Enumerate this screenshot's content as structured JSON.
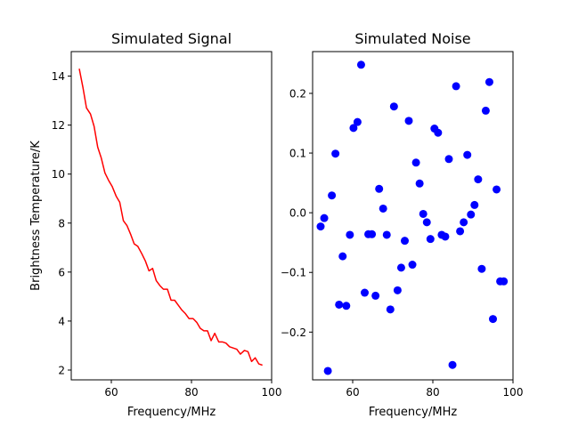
{
  "chart_data": [
    {
      "type": "line",
      "title": "Simulated Signal",
      "xlabel": "Frequency/MHz",
      "ylabel": "Brightness Temperature/K",
      "xlim": [
        50,
        100
      ],
      "ylim": [
        1.6,
        15.0
      ],
      "xticks": [
        60,
        80,
        100
      ],
      "xtick_labels": [
        "60",
        "80",
        "100"
      ],
      "yticks": [
        2,
        4,
        6,
        8,
        10,
        12,
        14
      ],
      "ytick_labels": [
        "2",
        "4",
        "6",
        "8",
        "10",
        "12",
        "14"
      ],
      "grid": false,
      "legend": "none",
      "series": [
        {
          "color": "#ff0000",
          "x": [
            52.0,
            52.9,
            53.8,
            54.8,
            55.7,
            56.6,
            57.5,
            58.4,
            59.3,
            60.2,
            61.2,
            62.1,
            63.0,
            63.9,
            64.8,
            65.7,
            66.6,
            67.6,
            68.5,
            69.4,
            70.3,
            71.2,
            72.1,
            73.0,
            74.0,
            74.9,
            75.8,
            76.7,
            77.6,
            78.5,
            79.4,
            80.4,
            81.3,
            82.2,
            83.1,
            84.0,
            84.9,
            85.8,
            86.8,
            87.7,
            88.6,
            89.5,
            90.4,
            91.3,
            92.2,
            93.2,
            94.1,
            95.0,
            95.9,
            96.8,
            97.7
          ],
          "y": [
            14.3,
            13.55,
            12.7,
            12.45,
            11.95,
            11.1,
            10.65,
            10.05,
            9.75,
            9.5,
            9.1,
            8.85,
            8.1,
            7.9,
            7.55,
            7.15,
            7.05,
            6.75,
            6.45,
            6.05,
            6.15,
            5.65,
            5.45,
            5.3,
            5.3,
            4.85,
            4.85,
            4.65,
            4.45,
            4.3,
            4.1,
            4.1,
            3.95,
            3.7,
            3.6,
            3.6,
            3.2,
            3.5,
            3.15,
            3.15,
            3.1,
            2.95,
            2.9,
            2.85,
            2.65,
            2.8,
            2.75,
            2.35,
            2.5,
            2.25,
            2.2
          ]
        }
      ]
    },
    {
      "type": "scatter",
      "title": "Simulated Noise",
      "xlabel": "Frequency/MHz",
      "ylabel": "",
      "xlim": [
        50,
        100
      ],
      "ylim": [
        -0.28,
        0.27
      ],
      "xticks": [
        60,
        80,
        100
      ],
      "xtick_labels": [
        "60",
        "80",
        "100"
      ],
      "yticks": [
        -0.2,
        -0.1,
        0.0,
        0.1,
        0.2
      ],
      "ytick_labels": [
        "−0.2",
        "−0.1",
        "0.0",
        "0.1",
        "0.2"
      ],
      "grid": false,
      "legend": "none",
      "series": [
        {
          "color": "#0000ff",
          "x": [
            52.0,
            52.9,
            53.8,
            54.8,
            55.7,
            56.6,
            57.5,
            58.4,
            59.3,
            60.2,
            61.2,
            62.1,
            63.0,
            63.9,
            64.8,
            65.7,
            66.6,
            67.6,
            68.5,
            69.4,
            70.3,
            71.2,
            72.1,
            73.0,
            74.0,
            74.9,
            75.8,
            76.7,
            77.6,
            78.5,
            79.4,
            80.4,
            81.3,
            82.2,
            83.1,
            84.0,
            84.9,
            85.8,
            86.8,
            87.7,
            88.6,
            89.5,
            90.4,
            91.3,
            92.2,
            93.2,
            94.1,
            95.0,
            95.9,
            96.8,
            97.7
          ],
          "y": [
            -0.023,
            -0.009,
            -0.265,
            0.029,
            0.099,
            -0.154,
            -0.073,
            -0.156,
            -0.037,
            0.142,
            0.152,
            0.248,
            -0.134,
            -0.036,
            -0.036,
            -0.139,
            0.04,
            0.007,
            -0.037,
            -0.162,
            0.178,
            -0.13,
            -0.092,
            -0.047,
            0.154,
            -0.087,
            0.084,
            0.049,
            -0.002,
            -0.016,
            -0.044,
            0.141,
            0.134,
            -0.037,
            -0.04,
            0.09,
            -0.255,
            0.212,
            -0.031,
            -0.016,
            0.097,
            -0.003,
            0.013,
            0.056,
            -0.094,
            0.171,
            0.219,
            -0.178,
            0.039,
            -0.115,
            -0.115
          ]
        }
      ]
    }
  ]
}
